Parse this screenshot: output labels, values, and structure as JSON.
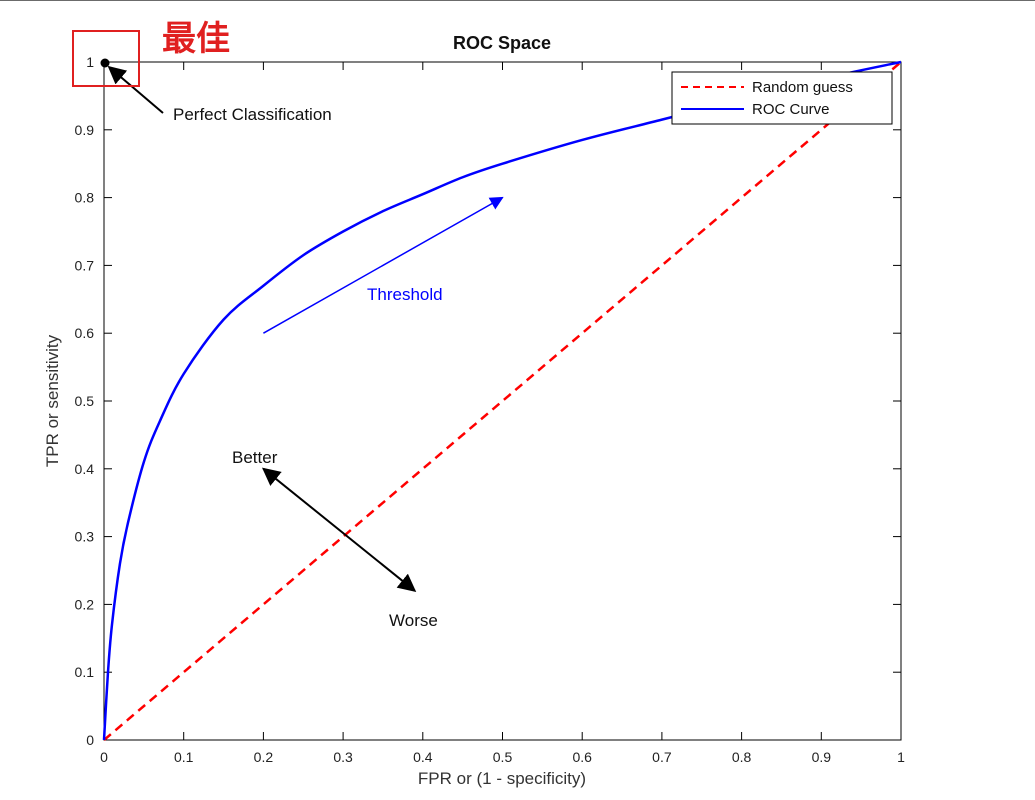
{
  "chart_data": {
    "type": "line",
    "title": "ROC Space",
    "xlabel": "FPR or (1 - specificity)",
    "ylabel": "TPR or sensitivity",
    "xlim": [
      0,
      1
    ],
    "ylim": [
      0,
      1
    ],
    "x_ticks": [
      "0",
      "0.1",
      "0.2",
      "0.3",
      "0.4",
      "0.5",
      "0.6",
      "0.7",
      "0.8",
      "0.9",
      "1"
    ],
    "y_ticks": [
      "0",
      "0.1",
      "0.2",
      "0.3",
      "0.4",
      "0.5",
      "0.6",
      "0.7",
      "0.8",
      "0.9",
      "1"
    ],
    "grid": false,
    "legend": {
      "placement": "top-right"
    },
    "series": [
      {
        "name": "Random guess",
        "style": "dashed",
        "color": "#ff0000",
        "x": [
          0,
          1
        ],
        "y": [
          0,
          1
        ]
      },
      {
        "name": "ROC Curve",
        "style": "solid",
        "color": "#0000ff",
        "x": [
          0,
          0.005,
          0.01,
          0.02,
          0.03,
          0.05,
          0.07,
          0.1,
          0.15,
          0.2,
          0.25,
          0.3,
          0.35,
          0.4,
          0.45,
          0.5,
          0.6,
          0.7,
          0.8,
          0.9,
          1.0
        ],
        "y": [
          0,
          0.1,
          0.17,
          0.26,
          0.32,
          0.41,
          0.47,
          0.54,
          0.62,
          0.67,
          0.715,
          0.75,
          0.78,
          0.805,
          0.83,
          0.85,
          0.885,
          0.915,
          0.945,
          0.975,
          1.0
        ]
      }
    ],
    "annotations": {
      "perfect": {
        "text": "Perfect Classification",
        "point": [
          0,
          1
        ]
      },
      "threshold": {
        "text": "Threshold",
        "arrow_from": [
          0.2,
          0.6
        ],
        "arrow_to": [
          0.5,
          0.8
        ]
      },
      "better": {
        "text": "Better",
        "arrow_to": [
          0.2,
          0.4
        ]
      },
      "worse": {
        "text": "Worse",
        "arrow_to": [
          0.39,
          0.22
        ]
      },
      "best_label": "最佳"
    },
    "colors": {
      "best_label": "#e02020",
      "best_box": "#e02020"
    }
  }
}
